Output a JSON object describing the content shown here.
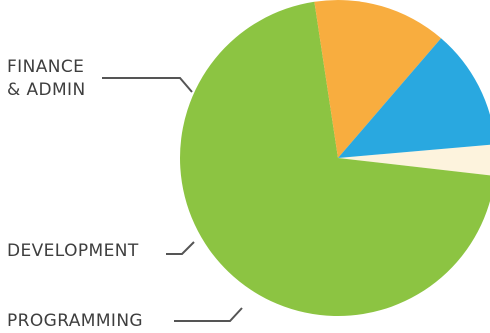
{
  "chart_data": {
    "type": "pie",
    "title": "",
    "slices": [
      {
        "label": "",
        "value": 3.2,
        "color": "#fdf3dd"
      },
      {
        "label": "PROGRAMMING",
        "value": 70.8,
        "color": "#8cc442"
      },
      {
        "label": "DEVELOPMENT",
        "value": 13.7,
        "color": "#f8ad3f"
      },
      {
        "label": "FINANCE & ADMIN",
        "value": 12.3,
        "color": "#29a8e0"
      }
    ],
    "legend": "callout labels on left"
  },
  "labels": {
    "finance_line1": "FINANCE",
    "finance_line2": "& ADMIN",
    "development": "DEVELOPMENT",
    "programming": "PROGRAMMING"
  }
}
